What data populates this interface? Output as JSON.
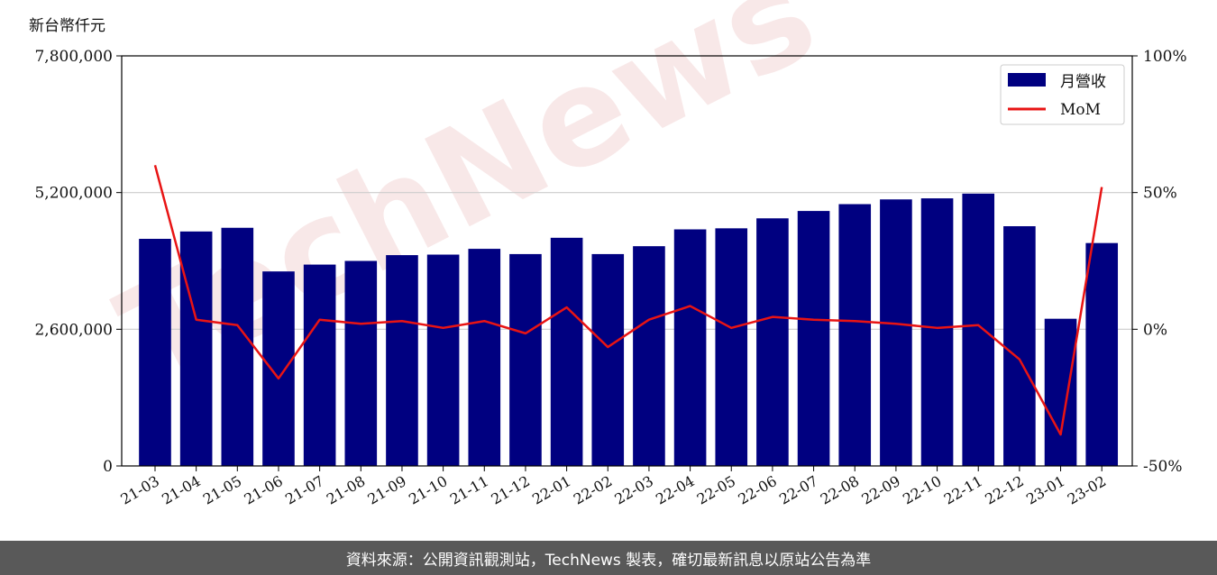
{
  "unit_label": "新台幣仟元",
  "watermark": "TechNews",
  "footer": "資料來源：公開資訊觀測站，TechNews 製表，確切最新訊息以原站公告為準",
  "colors": {
    "bar": "#000080",
    "line": "#e81414",
    "grid": "#cccccc",
    "footer_bg": "#595959"
  },
  "chart_data": {
    "type": "bar",
    "categories": [
      "21-03",
      "21-04",
      "21-05",
      "21-06",
      "21-07",
      "21-08",
      "21-09",
      "21-10",
      "21-11",
      "21-12",
      "22-01",
      "22-02",
      "22-03",
      "22-04",
      "22-05",
      "22-06",
      "22-07",
      "22-08",
      "22-09",
      "22-10",
      "22-11",
      "22-12",
      "23-01",
      "23-02"
    ],
    "series": [
      {
        "name": "月營收",
        "type": "bar",
        "axis": "left",
        "values": [
          4320000,
          4460000,
          4530000,
          3700000,
          3830000,
          3900000,
          4010000,
          4020000,
          4130000,
          4030000,
          4340000,
          4030000,
          4180000,
          4500000,
          4520000,
          4710000,
          4850000,
          4980000,
          5070000,
          5090000,
          5180000,
          4560000,
          2800000,
          4240000
        ]
      },
      {
        "name": "MoM",
        "type": "line",
        "axis": "right",
        "values": [
          60,
          3.5,
          1.5,
          -18,
          3.5,
          2,
          3,
          0.5,
          3,
          -1.5,
          8,
          -6.5,
          3.5,
          8.5,
          0.5,
          4.5,
          3.5,
          3,
          2,
          0.5,
          1.5,
          -11,
          -38.5,
          52
        ]
      }
    ],
    "yleft": {
      "min": 0,
      "max": 7800000,
      "ticks": [
        0,
        2600000,
        5200000,
        7800000
      ],
      "tick_labels": [
        "0",
        "2,600,000",
        "5,200,000",
        "7,800,000"
      ]
    },
    "yright": {
      "min": -50,
      "max": 100,
      "ticks": [
        -50,
        0,
        50,
        100
      ],
      "tick_labels": [
        "-50%",
        "0%",
        "50%",
        "100%"
      ]
    },
    "grid": true,
    "legend": "top-right"
  }
}
